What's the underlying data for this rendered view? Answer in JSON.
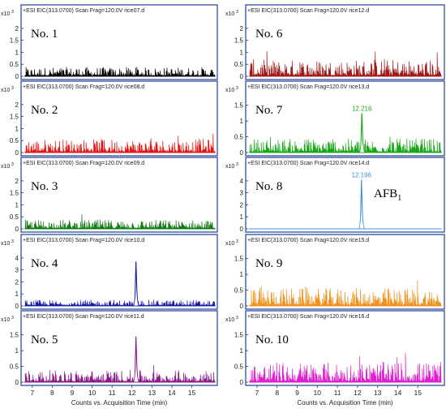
{
  "chart_data": {
    "type": "line",
    "x_ticks": [
      7,
      8,
      9,
      10,
      11,
      12,
      13,
      14,
      15
    ],
    "xlim": [
      6.6,
      16.2
    ],
    "xlabel": "Counts vs. Acquisition Time (min)",
    "exponent": "3",
    "panels": [
      {
        "label": "No. 1",
        "header": "+ESI EIC(313.0700) Scan Frag=120.0V rice07.d",
        "color": "#000000",
        "yticks": [
          "0",
          "0.5",
          "1",
          "1.5",
          "2"
        ],
        "ymax": 2.3,
        "base": 0.3,
        "peak": null
      },
      {
        "label": "No. 6",
        "header": "+ESI EIC(313.0700) Scan Frag=120.0V rice12.d",
        "color": "#a01818",
        "yticks": [
          "0",
          "0.5",
          "1",
          "1.5",
          "2"
        ],
        "ymax": 2.3,
        "base": 0.55,
        "peak": null
      },
      {
        "label": "No. 2",
        "header": "+ESI EIC(313.0700) Scan Frag=120.0V rice08.d",
        "color": "#e81010",
        "yticks": [
          "0",
          "0.5",
          "1",
          "1.5",
          "2"
        ],
        "ymax": 2.3,
        "base": 0.45,
        "peak": null
      },
      {
        "label": "No. 7",
        "header": "+ESI EIC(313.0700) Scan Frag=120.0V rice13.d",
        "color": "#19a619",
        "yticks": [
          "0",
          "0.5",
          "1",
          "1.5"
        ],
        "ymax": 1.75,
        "base": 0.35,
        "peak": {
          "x": 12.216,
          "y": 1.25,
          "label": "12.216"
        }
      },
      {
        "label": "No. 3",
        "header": "+ESI EIC(313.0700) Scan Frag=120.0V rice09.d",
        "color": "#0f7a0f",
        "yticks": [
          "0",
          "0.5",
          "1",
          "1.5",
          "2"
        ],
        "ymax": 2.3,
        "base": 0.3,
        "peak": null
      },
      {
        "label": "No. 8",
        "header": "+ESI EIC(313.0700) Scan Frag=120.0V rice14.d",
        "color": "#3d8fd8",
        "yticks": [
          "0",
          "1",
          "2",
          "3",
          "4"
        ],
        "ymax": 4.6,
        "base": 0.0,
        "peak": {
          "x": 12.196,
          "y": 4.1,
          "label": "12.196"
        },
        "analyte": "AFB",
        "analyte_sub": "1"
      },
      {
        "label": "No. 4",
        "header": "+ESI EIC(313.0700) Scan Frag=120.0V rice10.d",
        "color": "#1a1aaa",
        "yticks": [
          "0",
          "1",
          "2",
          "3",
          "4"
        ],
        "ymax": 4.6,
        "base": 0.4,
        "peak": {
          "x": 12.2,
          "y": 3.7,
          "label": ""
        }
      },
      {
        "label": "No. 9",
        "header": "+ESI EIC(313.0700) Scan Frag=120.0V rice15.d",
        "color": "#f0921c",
        "yticks": [
          "0",
          "0.5",
          "1",
          "1.5"
        ],
        "ymax": 1.75,
        "base": 0.45,
        "peak": null
      },
      {
        "label": "No. 5",
        "header": "+ESI EIC(313.0700) Scan Frag=120.0V rice11.d",
        "color": "#8a1a8a",
        "yticks": [
          "0",
          "0.5",
          "1",
          "1.5"
        ],
        "ymax": 1.75,
        "base": 0.3,
        "peak": {
          "x": 12.2,
          "y": 1.45,
          "label": ""
        }
      },
      {
        "label": "No. 10",
        "header": "+ESI EIC(313.0700) Scan Frag=120.0V rice16.d",
        "color": "#e020d0",
        "yticks": [
          "0",
          "0.5",
          "1",
          "1.5"
        ],
        "ymax": 1.75,
        "base": 0.5,
        "peak": null
      }
    ]
  }
}
